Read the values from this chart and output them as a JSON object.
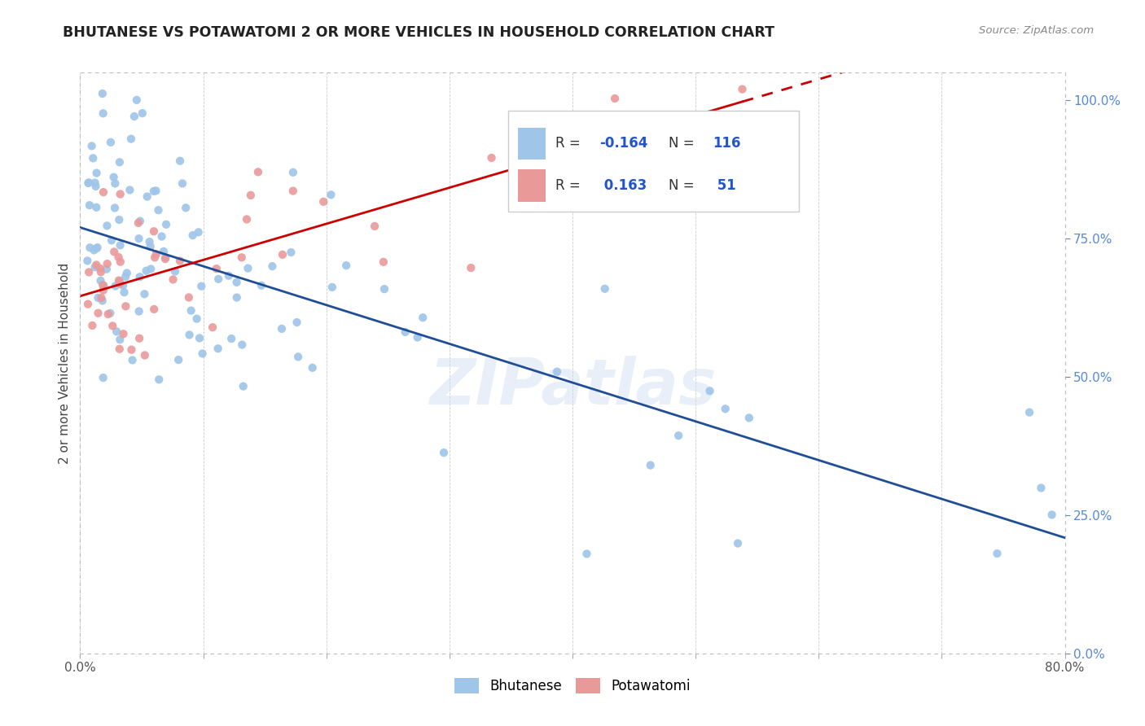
{
  "title": "BHUTANESE VS POTAWATOMI 2 OR MORE VEHICLES IN HOUSEHOLD CORRELATION CHART",
  "source": "Source: ZipAtlas.com",
  "ylabel": "2 or more Vehicles in Household",
  "xmin": 0.0,
  "xmax": 0.8,
  "ymin": 0.0,
  "ymax": 1.05,
  "x_tick_pos": [
    0.0,
    0.1,
    0.2,
    0.3,
    0.4,
    0.5,
    0.6,
    0.7,
    0.8
  ],
  "x_tick_labels": [
    "0.0%",
    "",
    "",
    "",
    "",
    "",
    "",
    "",
    "80.0%"
  ],
  "y_ticks_right": [
    0.0,
    0.25,
    0.5,
    0.75,
    1.0
  ],
  "y_tick_labels_right": [
    "0.0%",
    "25.0%",
    "50.0%",
    "75.0%",
    "100.0%"
  ],
  "blue_color": "#9fc5e8",
  "pink_color": "#ea9999",
  "blue_line_color": "#1f4e96",
  "pink_line_color": "#cc0000",
  "watermark": "ZIPatlas",
  "bhutanese_label": "Bhutanese",
  "potawatomi_label": "Potawatomi",
  "blue_R": "-0.164",
  "blue_N": "116",
  "pink_R": "0.163",
  "pink_N": "51",
  "seed_blue": 42,
  "seed_pink": 77
}
